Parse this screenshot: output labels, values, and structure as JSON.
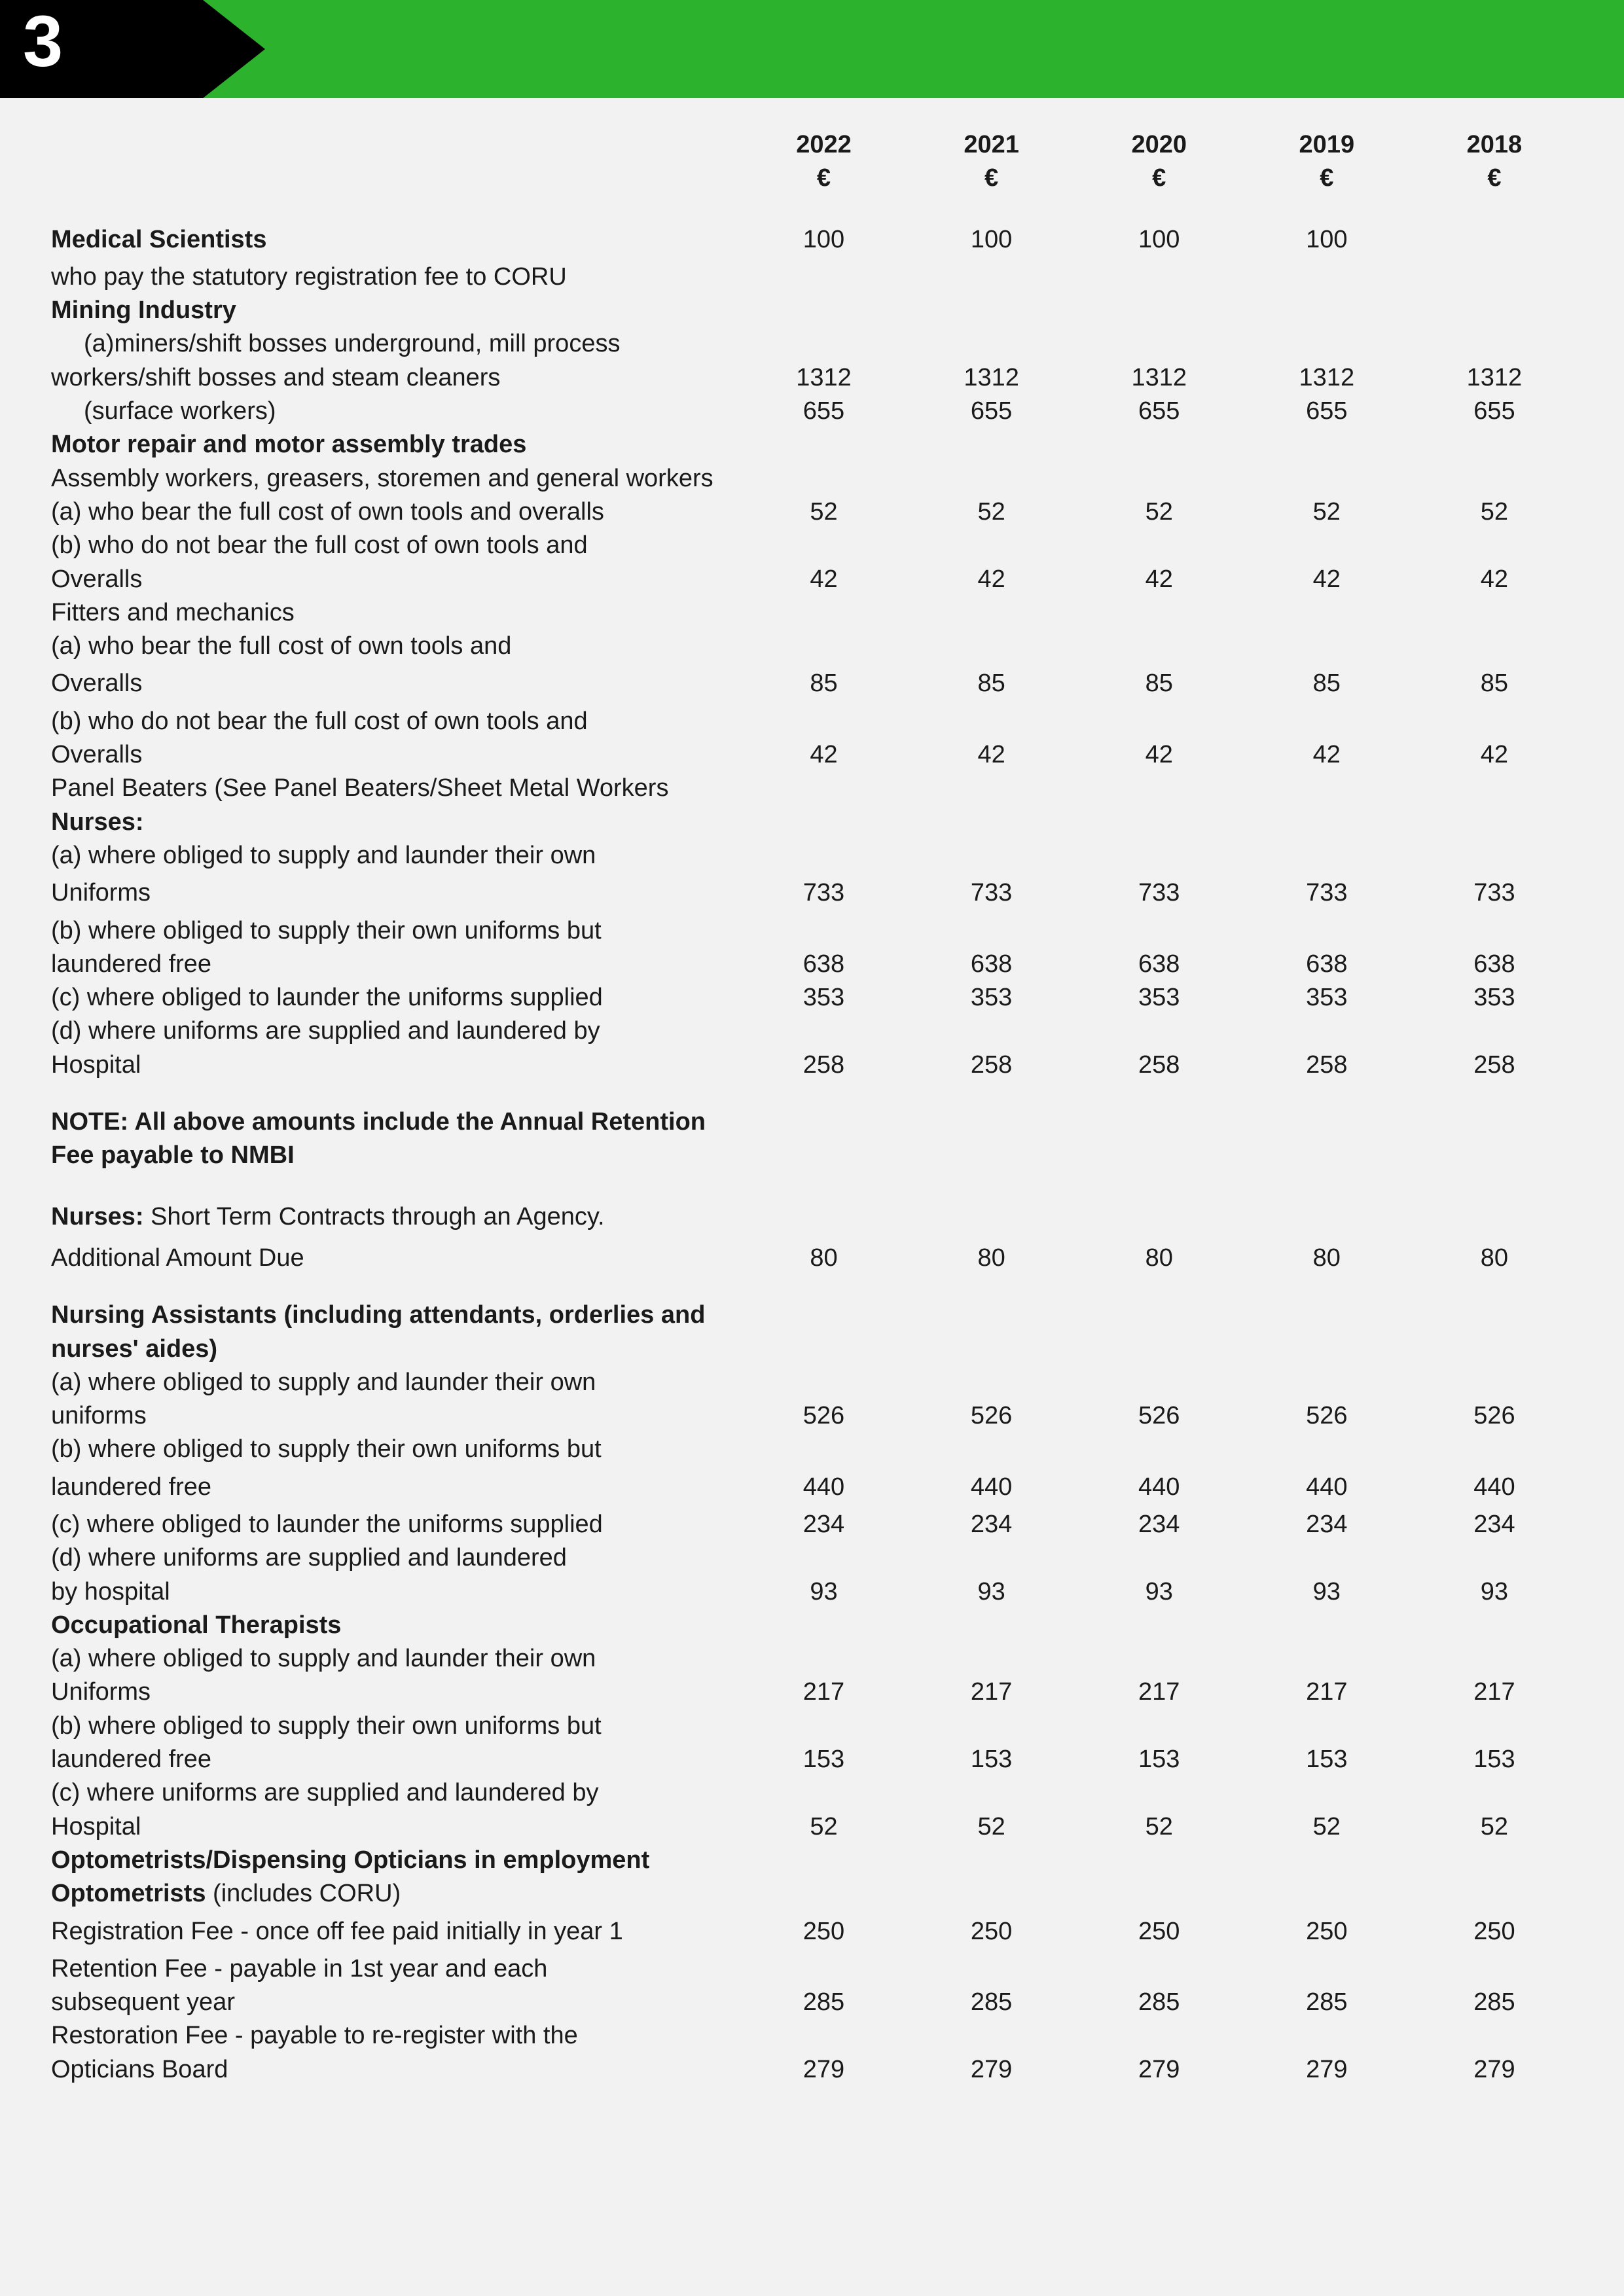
{
  "page": {
    "number": "3"
  },
  "colors": {
    "banner": "#2db22d",
    "tab": "#000000",
    "page_bg": "#f2f2f2",
    "text": "#1a1a1a",
    "num": "#ffffff"
  },
  "headers": {
    "y2022": "2022",
    "y2021": "2021",
    "y2020": "2020",
    "y2019": "2019",
    "y2018": "2018",
    "euro": "€"
  },
  "labels": {
    "med_sci": "Medical Scientists",
    "med_sci_sub": "who pay the statutory registration fee to CORU",
    "mining": "Mining Industry",
    "mining_a": "(a)miners/shift bosses underground, mill process",
    "mining_a2": "workers/shift bosses and steam cleaners",
    "mining_surface": "(surface workers)",
    "motor": "Motor repair and motor assembly trades",
    "motor_sub": "Assembly workers, greasers, storemen and general workers",
    "motor_a": "(a)  who bear the full cost of own tools and overalls",
    "motor_b": "(b)  who do not bear the full cost of own tools and",
    "overalls": "Overalls",
    "fitters": "Fitters and mechanics",
    "fitters_a": "(a)  who bear the full cost of own tools and",
    "fitters_b": "(b) who do not bear the full cost of own tools and",
    "panel": "Panel Beaters (See Panel Beaters/Sheet Metal Workers",
    "nurses": "Nurses:",
    "nurses_a": "(a)  where obliged to supply and launder their own",
    "uniforms": "Uniforms",
    "nurses_b": "(b)  where obliged to supply their own uniforms but",
    "laundered_free": "laundered free",
    "nurses_c": "(c)  where obliged to launder the uniforms supplied",
    "nurses_d": "(d)  where uniforms are supplied and laundered by",
    "hospital": "Hospital",
    "note": "NOTE: All above amounts include the Annual Retention Fee payable to NMBI",
    "nurses_short_bold": "Nurses:",
    "nurses_short_rest": "  Short Term Contracts through an Agency.",
    "additional": "Additional Amount Due",
    "na": "Nursing Assistants (including attendants, orderlies and nurses' aides)",
    "na_a": "(a)  where obliged to supply and launder their own",
    "uniforms_l": "uniforms",
    "na_b": "(b)  where obliged to supply their own uniforms but",
    "na_c": "(c)  where obliged to launder the uniforms supplied",
    "na_d": "(d)  where uniforms are supplied and laundered",
    "by_hospital": "by hospital",
    "occ": "Occupational Therapists",
    "occ_a": "(a)  where obliged to supply and launder their own",
    "occ_b": "(b)  where obliged to supply their own uniforms but",
    "occ_c": "(c)  where uniforms are supplied and laundered by",
    "opto_emp": "Optometrists/Dispensing Opticians in employment",
    "opto_bold": "Optometrists",
    "opto_rest": " (includes  CORU)",
    "reg_fee": "Registration Fee - once off fee paid initially in year 1",
    "ret_fee": "Retention Fee - payable in 1st year and each",
    "subsequent": "subsequent year",
    "rest_fee": "Restoration Fee - payable to re-register with the",
    "opt_board": "Opticians Board"
  },
  "values": {
    "med_sci": [
      "100",
      "100",
      "100",
      "100",
      ""
    ],
    "mining_a": [
      "1312",
      "1312",
      "1312",
      "1312",
      "1312"
    ],
    "mining_surface": [
      "655",
      "655",
      "655",
      "655",
      "655"
    ],
    "motor_a": [
      "52",
      "52",
      "52",
      "52",
      "52"
    ],
    "motor_b": [
      "42",
      "42",
      "42",
      "42",
      "42"
    ],
    "fitters_a": [
      "85",
      "85",
      "85",
      "85",
      "85"
    ],
    "fitters_b": [
      "42",
      "42",
      "42",
      "42",
      "42"
    ],
    "nurses_a": [
      "733",
      "733",
      "733",
      "733",
      "733"
    ],
    "nurses_b": [
      "638",
      "638",
      "638",
      "638",
      "638"
    ],
    "nurses_c": [
      "353",
      "353",
      "353",
      "353",
      "353"
    ],
    "nurses_d": [
      "258",
      "258",
      "258",
      "258",
      "258"
    ],
    "additional": [
      "80",
      "80",
      "80",
      "80",
      "80"
    ],
    "na_a": [
      "526",
      "526",
      "526",
      "526",
      "526"
    ],
    "na_b": [
      "440",
      "440",
      "440",
      "440",
      "440"
    ],
    "na_c": [
      "234",
      "234",
      "234",
      "234",
      "234"
    ],
    "na_d": [
      "93",
      "93",
      "93",
      "93",
      "93"
    ],
    "occ_a": [
      "217",
      "217",
      "217",
      "217",
      "217"
    ],
    "occ_b": [
      "153",
      "153",
      "153",
      "153",
      "153"
    ],
    "occ_c": [
      "52",
      "52",
      "52",
      "52",
      "52"
    ],
    "reg_fee": [
      "250",
      "250",
      "250",
      "250",
      "250"
    ],
    "ret_fee": [
      "285",
      "285",
      "285",
      "285",
      "285"
    ],
    "rest_fee": [
      "279",
      "279",
      "279",
      "279",
      "279"
    ]
  }
}
